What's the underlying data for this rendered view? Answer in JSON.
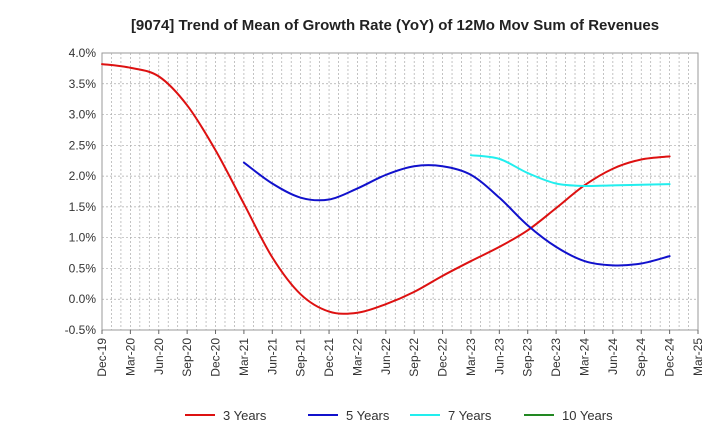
{
  "chart_data": {
    "type": "line",
    "title": "[9074]  Trend of Mean of Growth Rate (YoY) of 12Mo Mov Sum of Revenues",
    "xlabel": "",
    "ylabel": "",
    "categories": [
      "Dec-19",
      "Mar-20",
      "Jun-20",
      "Sep-20",
      "Dec-20",
      "Mar-21",
      "Jun-21",
      "Sep-21",
      "Dec-21",
      "Mar-22",
      "Jun-22",
      "Sep-22",
      "Dec-22",
      "Mar-23",
      "Jun-23",
      "Sep-23",
      "Dec-23",
      "Mar-24",
      "Jun-24",
      "Sep-24",
      "Dec-24",
      "Mar-25"
    ],
    "y_ticks": [
      "4.0%",
      "3.5%",
      "3.0%",
      "2.5%",
      "2.0%",
      "1.5%",
      "1.0%",
      "0.5%",
      "0.0%",
      "-0.5%"
    ],
    "ylim": [
      -0.5,
      4.0
    ],
    "grid": true,
    "legend_position": "bottom",
    "series": [
      {
        "name": "3 Years",
        "color": "#dd1111",
        "values": [
          3.82,
          3.76,
          3.62,
          3.15,
          2.42,
          1.55,
          0.68,
          0.08,
          -0.2,
          -0.22,
          -0.08,
          0.12,
          0.38,
          0.62,
          0.85,
          1.12,
          1.48,
          1.85,
          2.12,
          2.27,
          2.32,
          null
        ]
      },
      {
        "name": "5 Years",
        "color": "#1111cc",
        "values": [
          null,
          null,
          null,
          null,
          null,
          2.22,
          1.88,
          1.65,
          1.62,
          1.8,
          2.02,
          2.16,
          2.16,
          2.02,
          1.65,
          1.2,
          0.85,
          0.62,
          0.55,
          0.58,
          0.7,
          null
        ]
      },
      {
        "name": "7 Years",
        "color": "#22eeee",
        "values": [
          null,
          null,
          null,
          null,
          null,
          null,
          null,
          null,
          null,
          null,
          null,
          null,
          null,
          2.34,
          2.28,
          2.05,
          1.88,
          1.84,
          1.85,
          1.86,
          1.87,
          null
        ]
      },
      {
        "name": "10 Years",
        "color": "#228822",
        "values": [
          null,
          null,
          null,
          null,
          null,
          null,
          null,
          null,
          null,
          null,
          null,
          null,
          null,
          null,
          null,
          null,
          null,
          null,
          null,
          null,
          null,
          null
        ]
      }
    ]
  }
}
